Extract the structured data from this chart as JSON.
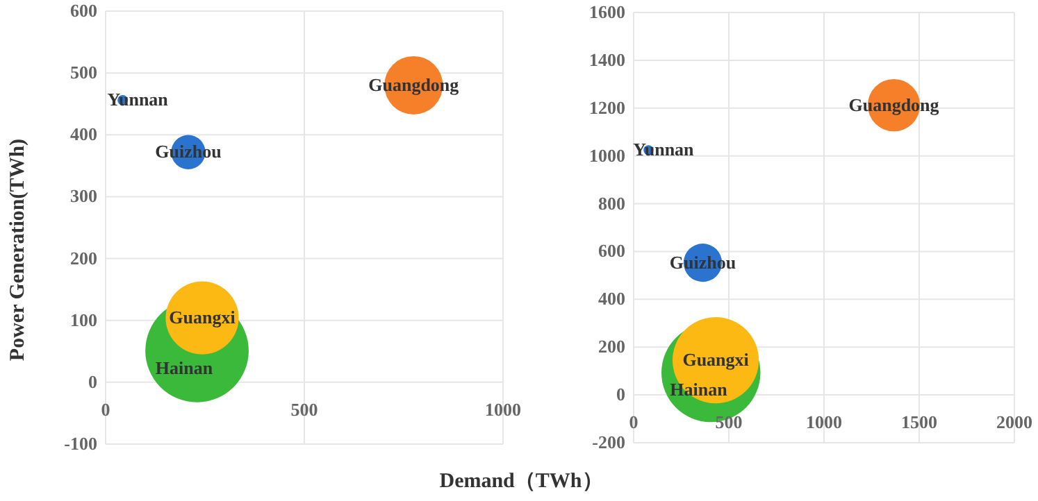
{
  "chart_data": [
    {
      "type": "bubble",
      "ylabel": "Power Generation(TWh)",
      "xlabel": "Demand（TWh）",
      "xlim": [
        0,
        1000
      ],
      "xticks": [
        0,
        500,
        1000
      ],
      "ylim": [
        -100,
        600
      ],
      "yticks": [
        -100,
        0,
        100,
        200,
        300,
        400,
        500,
        600
      ],
      "grid": true,
      "series": [
        {
          "name": "Yunnan",
          "color": "#2a74d0",
          "x": [
            43
          ],
          "values": [
            456
          ],
          "sizes": [
            0.01
          ]
        },
        {
          "name": "Guizhou",
          "color": "#2a74d0",
          "x": [
            208
          ],
          "values": [
            372
          ],
          "sizes": [
            0.11
          ]
        },
        {
          "name": "Guangdong",
          "color": "#f6802a",
          "x": [
            775
          ],
          "values": [
            480
          ],
          "sizes": [
            0.32
          ]
        },
        {
          "name": "Hainan",
          "color": "#3ab93a",
          "x": [
            230
          ],
          "values": [
            51
          ],
          "sizes": [
            1
          ]
        },
        {
          "name": "Guangxi",
          "color": "#fdb913",
          "x": [
            243
          ],
          "values": [
            104
          ],
          "sizes": [
            0.5
          ]
        }
      ]
    },
    {
      "type": "bubble",
      "xlim": [
        0,
        2000
      ],
      "xticks": [
        0,
        500,
        1000,
        1500,
        2000
      ],
      "ylim": [
        -200,
        1600
      ],
      "yticks": [
        -200,
        0,
        200,
        400,
        600,
        800,
        1000,
        1200,
        1400,
        1600
      ],
      "grid": true,
      "series": [
        {
          "name": "Yunnan",
          "color": "#2a74d0",
          "x": [
            78
          ],
          "values": [
            1024
          ],
          "sizes": [
            0.01
          ]
        },
        {
          "name": "Guizhou",
          "color": "#2a74d0",
          "x": [
            363
          ],
          "values": [
            553
          ],
          "sizes": [
            0.15
          ]
        },
        {
          "name": "Guangdong",
          "color": "#f6802a",
          "x": [
            1367
          ],
          "values": [
            1212
          ],
          "sizes": [
            0.28
          ]
        },
        {
          "name": "Hainan",
          "color": "#3ab93a",
          "x": [
            406
          ],
          "values": [
            93
          ],
          "sizes": [
            1
          ]
        },
        {
          "name": "Guangxi",
          "color": "#fdb913",
          "x": [
            431
          ],
          "values": [
            145
          ],
          "sizes": [
            0.76
          ]
        }
      ]
    }
  ]
}
